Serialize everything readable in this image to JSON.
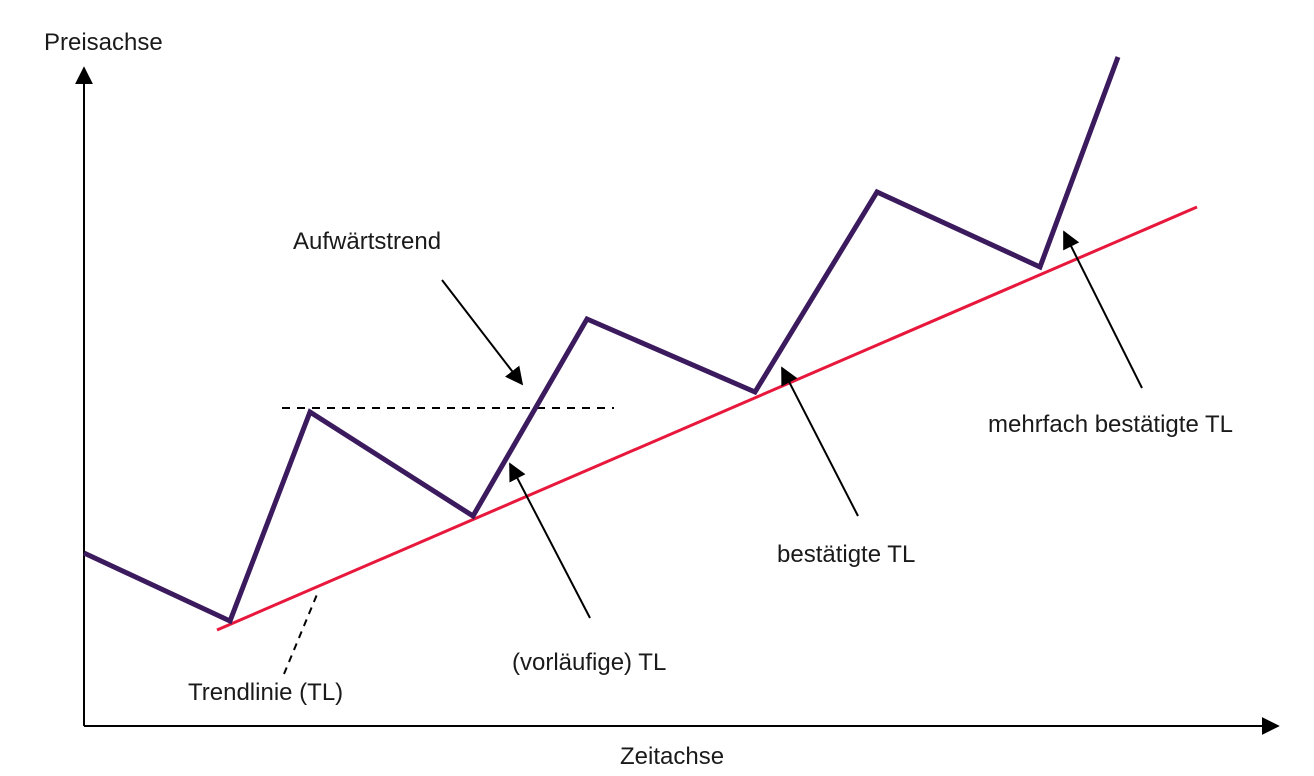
{
  "labels": {
    "y_axis": "Preisachse",
    "x_axis": "Zeitachse",
    "uptrend": "Aufwärtstrend",
    "trendline": "Trendlinie (TL)",
    "provisional_tl": "(vorläufige) TL",
    "confirmed_tl": "bestätigte TL",
    "multi_confirmed_tl": "mehrfach bestätigte TL"
  },
  "colors": {
    "price_line": "#3b1a5e",
    "trend_line": "#e8173c",
    "axes": "#000000",
    "text": "#1a1a1a"
  }
}
